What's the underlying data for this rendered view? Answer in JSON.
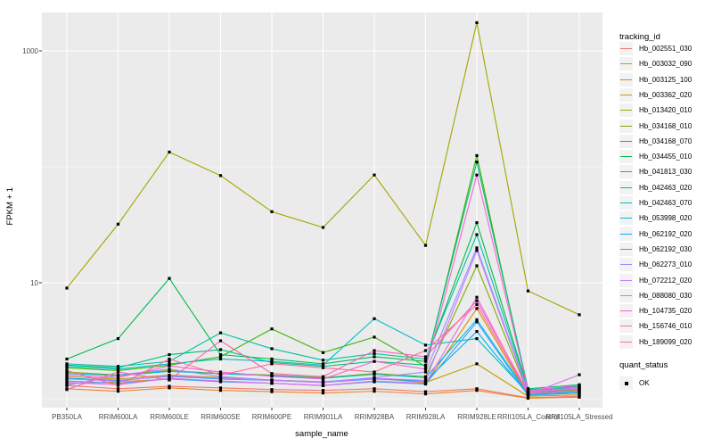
{
  "figure": {
    "background": "#FFFFFF",
    "panel_background": "#EBEBEB",
    "grid_color": "#FFFFFF",
    "axis_text_color": "#4D4D4D",
    "tick_color": "#333333",
    "marker_color": "#000000",
    "legend_key_background": "#F2F2F2"
  },
  "legend_tracking": {
    "title": "tracking_id"
  },
  "legend_quant": {
    "title": "quant_status",
    "items": [
      {
        "label": "OK",
        "marker": "black-square"
      }
    ]
  },
  "chart_data": {
    "type": "line",
    "title": "",
    "xlabel": "sample_name",
    "ylabel": "FPKM + 1",
    "y_scale": "log10",
    "ylim": [
      0.9,
      2200
    ],
    "y_tick_values": [
      10,
      1000
    ],
    "y_tick_labels": [
      "10",
      "1000"
    ],
    "y_major_gridlines": [
      10,
      1000
    ],
    "y_minor_gridlines": [
      1,
      100
    ],
    "grid": true,
    "legend_position": "right",
    "marker": "square",
    "categories": [
      "PB350LA",
      "RRIM600LA",
      "RRIM600LE",
      "RRIM600SE",
      "RRIM600PE",
      "RRIM901LA",
      "RRIM928BA",
      "RRIM928LA",
      "RRIM928LE",
      "RRII105LA_Control",
      "RRII105LA_Stressed"
    ],
    "series": [
      {
        "name": "Hb_002551_030",
        "color": "#F8766D",
        "values": [
          1.3,
          1.22,
          1.28,
          1.24,
          1.2,
          1.18,
          1.22,
          1.15,
          1.22,
          1.02,
          1.05
        ]
      },
      {
        "name": "Hb_003032_090",
        "color": "#E88526",
        "values": [
          1.22,
          1.16,
          1.24,
          1.18,
          1.15,
          1.12,
          1.16,
          1.1,
          1.18,
          1.01,
          1.03
        ]
      },
      {
        "name": "Hb_003125_100",
        "color": "#D89000",
        "values": [
          1.35,
          1.4,
          1.48,
          1.42,
          1.36,
          1.3,
          1.42,
          1.34,
          6.0,
          1.08,
          1.12
        ]
      },
      {
        "name": "Hb_003362_020",
        "color": "#C09B00",
        "values": [
          1.55,
          1.48,
          1.6,
          1.52,
          1.45,
          1.4,
          1.5,
          1.38,
          2.0,
          1.05,
          1.08
        ]
      },
      {
        "name": "Hb_013420_010",
        "color": "#A3A500",
        "values": [
          9.0,
          32,
          134,
          84,
          41,
          30,
          85,
          21,
          1750,
          8.5,
          5.3
        ]
      },
      {
        "name": "Hb_034168_010",
        "color": "#7CAE00",
        "values": [
          1.7,
          1.6,
          1.75,
          1.65,
          1.6,
          1.52,
          1.65,
          1.55,
          14,
          1.12,
          1.2
        ]
      },
      {
        "name": "Hb_034168_070",
        "color": "#39B600",
        "values": [
          1.85,
          1.75,
          1.95,
          2.3,
          4.0,
          2.5,
          3.4,
          1.9,
          125,
          1.15,
          1.3
        ]
      },
      {
        "name": "Hb_034455_010",
        "color": "#00BB4E",
        "values": [
          2.2,
          3.3,
          10.9,
          2.4,
          2.2,
          2.0,
          2.3,
          2.1,
          33,
          1.2,
          1.25
        ]
      },
      {
        "name": "Hb_041813_030",
        "color": "#00BF7D",
        "values": [
          1.95,
          1.85,
          2.4,
          2.65,
          2.05,
          1.9,
          2.1,
          1.95,
          110,
          1.22,
          1.32
        ]
      },
      {
        "name": "Hb_042463_020",
        "color": "#00C1A3",
        "values": [
          2.0,
          1.9,
          2.1,
          3.7,
          2.7,
          2.15,
          2.45,
          2.2,
          26,
          1.18,
          1.28
        ]
      },
      {
        "name": "Hb_042463_070",
        "color": "#00BFC4",
        "values": [
          1.9,
          1.8,
          2.0,
          2.2,
          2.1,
          1.95,
          4.9,
          2.9,
          3.3,
          1.12,
          1.22
        ]
      },
      {
        "name": "Hb_053998_020",
        "color": "#00BAE0",
        "values": [
          1.65,
          1.58,
          1.72,
          1.64,
          1.58,
          1.5,
          1.62,
          1.52,
          4.8,
          1.1,
          1.18
        ]
      },
      {
        "name": "Hb_062192_020",
        "color": "#00B0F6",
        "values": [
          1.5,
          1.44,
          1.56,
          1.48,
          1.44,
          1.38,
          1.48,
          1.42,
          3.8,
          1.08,
          1.15
        ]
      },
      {
        "name": "Hb_062192_030",
        "color": "#35A2FF",
        "values": [
          1.42,
          1.36,
          1.48,
          1.4,
          1.36,
          1.3,
          1.4,
          1.34,
          4.6,
          1.07,
          1.12
        ]
      },
      {
        "name": "Hb_062273_010",
        "color": "#9590FF",
        "values": [
          1.3,
          1.6,
          1.8,
          1.55,
          1.45,
          1.4,
          1.52,
          1.7,
          20,
          1.15,
          1.25
        ]
      },
      {
        "name": "Hb_072212_020",
        "color": "#C77CFF",
        "values": [
          1.48,
          1.42,
          1.58,
          1.5,
          1.44,
          1.38,
          1.5,
          1.44,
          19,
          1.12,
          1.25
        ]
      },
      {
        "name": "Hb_088080_030",
        "color": "#E76BF3",
        "values": [
          1.38,
          1.32,
          1.5,
          1.42,
          1.36,
          1.3,
          1.42,
          1.36,
          7.5,
          1.09,
          1.61
        ]
      },
      {
        "name": "Hb_104735_020",
        "color": "#FA62DB",
        "values": [
          1.6,
          1.52,
          1.92,
          1.7,
          1.56,
          1.48,
          2.1,
          1.8,
          85,
          1.18,
          1.3
        ]
      },
      {
        "name": "Hb_156746_010",
        "color": "#FF62BC",
        "values": [
          1.2,
          1.7,
          1.45,
          3.16,
          1.65,
          1.55,
          2.6,
          2.3,
          7.0,
          1.14,
          1.22
        ]
      },
      {
        "name": "Hb_189099_020",
        "color": "#FF6A98",
        "values": [
          1.75,
          1.3,
          2.2,
          1.6,
          2.0,
          1.85,
          1.7,
          2.6,
          6.5,
          1.1,
          1.18
        ]
      }
    ]
  }
}
